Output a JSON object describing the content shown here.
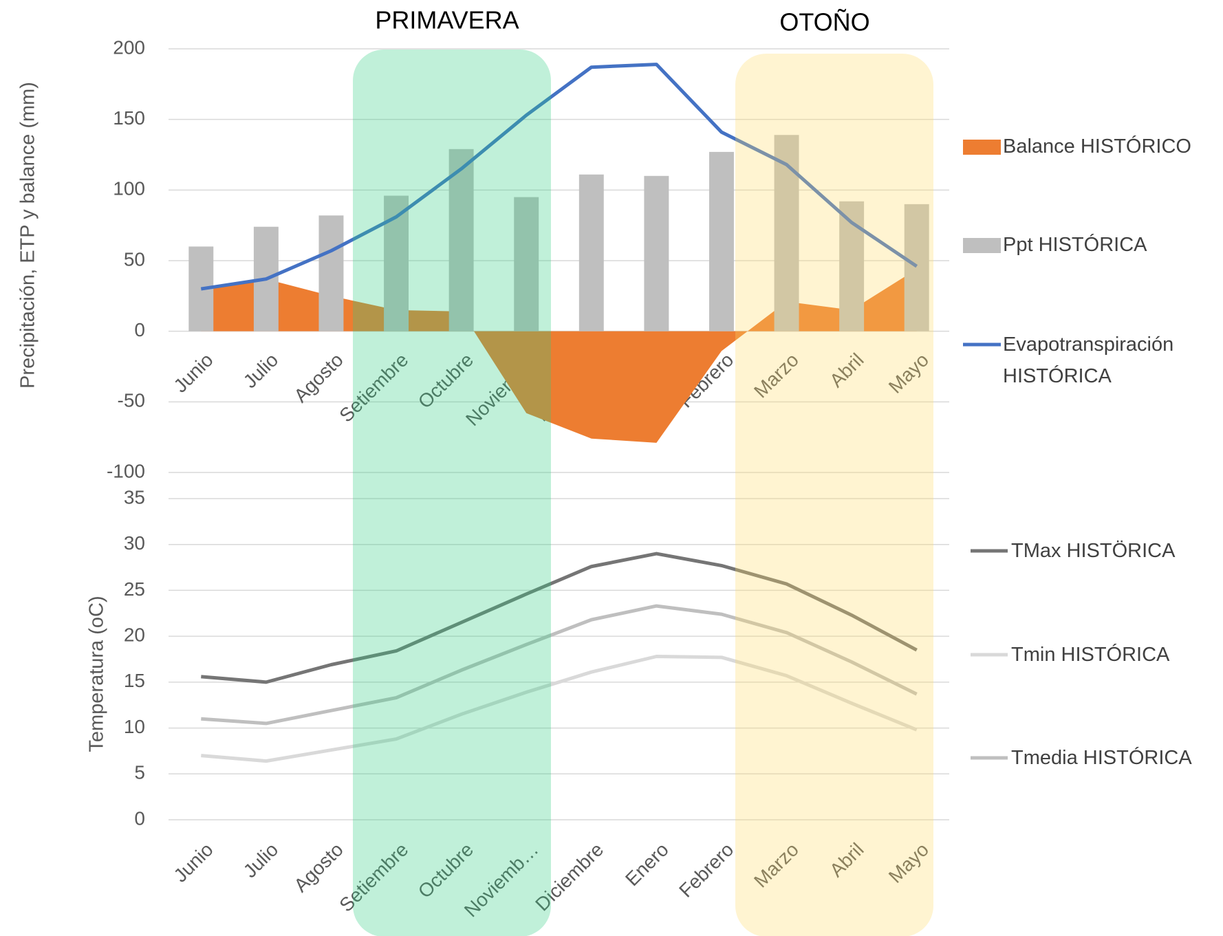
{
  "chart_data": [
    {
      "type": "combo",
      "annotations": [
        "PRIMAVERA",
        "OTOÑO"
      ],
      "y_label": "Precipitación, ETP y balance (mm)",
      "categories": [
        "Junio",
        "Julio",
        "Agosto",
        "Setiembre",
        "Octubre",
        "Noviembre",
        "Diciembre",
        "Enero",
        "Febrero",
        "Marzo",
        "Abril",
        "Mayo"
      ],
      "ylim": [
        -100,
        200
      ],
      "yticks": [
        -100,
        -50,
        0,
        50,
        100,
        150,
        200
      ],
      "grid": true,
      "series": [
        {
          "name": "Balance HISTÓRICO",
          "type": "area",
          "color": "#ed7d31",
          "values": [
            30,
            37,
            25,
            15,
            14,
            -58,
            -76,
            -79,
            -14,
            21,
            15,
            44
          ]
        },
        {
          "name": "Ppt HISTÓRICA",
          "type": "bar",
          "color": "#bfbfbf",
          "values": [
            60,
            74,
            82,
            96,
            129,
            95,
            111,
            110,
            127,
            139,
            92,
            90
          ]
        },
        {
          "name": "Evapotranspiración HISTÓRICA",
          "type": "line",
          "color": "#4472c4",
          "values": [
            30,
            37,
            57,
            81,
            115,
            153,
            187,
            189,
            141,
            118,
            77,
            46
          ]
        }
      ]
    },
    {
      "type": "line",
      "y_label": "Temperatura (oC)",
      "categories": [
        "Junio",
        "Julio",
        "Agosto",
        "Setiembre",
        "Octubre",
        "Noviemb…",
        "Diciembre",
        "Enero",
        "Febrero",
        "Marzo",
        "Abril",
        "Mayo"
      ],
      "ylim": [
        0,
        35
      ],
      "yticks": [
        0,
        5,
        10,
        15,
        20,
        25,
        30,
        35
      ],
      "grid": true,
      "series": [
        {
          "name": "TMax HISTÖRICA",
          "color": "#757575",
          "values": [
            15.6,
            15.0,
            16.9,
            18.4,
            21.5,
            24.6,
            27.6,
            29.0,
            27.7,
            25.7,
            22.3,
            18.5
          ]
        },
        {
          "name": "Tmin HISTÓRICA",
          "color": "#d9d9d9",
          "values": [
            7.0,
            6.4,
            7.6,
            8.8,
            11.5,
            13.9,
            16.1,
            17.8,
            17.7,
            15.7,
            12.7,
            9.8
          ]
        },
        {
          "name": "Tmedia HISTÓRICA",
          "color": "#bfbfbf",
          "values": [
            11.0,
            10.5,
            11.9,
            13.3,
            16.3,
            19.1,
            21.8,
            23.3,
            22.4,
            20.4,
            17.2,
            13.7
          ]
        }
      ]
    }
  ]
}
